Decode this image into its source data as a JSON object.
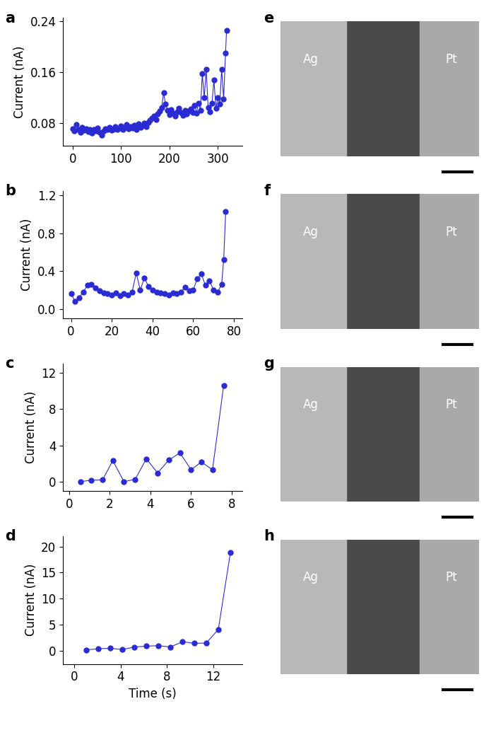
{
  "chart_data": [
    {
      "type": "line",
      "title": "a",
      "y_label": "Current (nA)",
      "color": "#2b2bd4",
      "marker": "o",
      "line_style": "solid",
      "x": [
        0,
        4,
        8,
        12,
        16,
        20,
        24,
        28,
        32,
        36,
        40,
        44,
        48,
        52,
        56,
        60,
        64,
        68,
        72,
        76,
        80,
        84,
        88,
        92,
        96,
        100,
        104,
        108,
        112,
        116,
        120,
        124,
        128,
        132,
        136,
        140,
        144,
        148,
        152,
        156,
        160,
        164,
        168,
        172,
        176,
        180,
        184,
        188,
        192,
        196,
        200,
        204,
        208,
        212,
        216,
        220,
        224,
        228,
        232,
        236,
        240,
        244,
        248,
        252,
        256,
        260,
        264,
        268,
        272,
        276,
        280,
        284,
        288,
        292,
        296,
        300,
        304,
        308,
        312,
        316,
        318
      ],
      "values": [
        0.072,
        0.068,
        0.078,
        0.07,
        0.066,
        0.074,
        0.069,
        0.072,
        0.067,
        0.071,
        0.065,
        0.07,
        0.068,
        0.073,
        0.066,
        0.062,
        0.068,
        0.072,
        0.07,
        0.074,
        0.069,
        0.071,
        0.075,
        0.07,
        0.073,
        0.076,
        0.071,
        0.074,
        0.078,
        0.072,
        0.075,
        0.073,
        0.077,
        0.071,
        0.079,
        0.074,
        0.076,
        0.08,
        0.075,
        0.082,
        0.085,
        0.088,
        0.092,
        0.086,
        0.095,
        0.099,
        0.105,
        0.128,
        0.11,
        0.1,
        0.094,
        0.102,
        0.096,
        0.092,
        0.098,
        0.104,
        0.097,
        0.093,
        0.1,
        0.095,
        0.099,
        0.103,
        0.097,
        0.108,
        0.096,
        0.112,
        0.1,
        0.158,
        0.12,
        0.165,
        0.105,
        0.098,
        0.112,
        0.148,
        0.104,
        0.12,
        0.11,
        0.165,
        0.118,
        0.19,
        0.225
      ],
      "xlim": [
        -20,
        350
      ],
      "xticks": [
        0,
        100,
        200,
        300
      ],
      "ylim": [
        0.045,
        0.245
      ],
      "yticks": [
        0.08,
        0.16,
        0.24
      ]
    },
    {
      "type": "line",
      "title": "b",
      "y_label": "Current (nA)",
      "color": "#2b2bd4",
      "marker": "o",
      "line_style": "solid",
      "x": [
        0,
        2,
        4,
        6,
        8,
        10,
        12,
        14,
        16,
        18,
        20,
        22,
        24,
        26,
        28,
        30,
        32,
        34,
        36,
        38,
        40,
        42,
        44,
        46,
        48,
        50,
        52,
        54,
        56,
        58,
        60,
        62,
        64,
        66,
        68,
        70,
        72,
        74,
        75,
        76
      ],
      "values": [
        0.16,
        0.08,
        0.12,
        0.18,
        0.25,
        0.26,
        0.22,
        0.19,
        0.17,
        0.16,
        0.15,
        0.17,
        0.14,
        0.16,
        0.15,
        0.18,
        0.38,
        0.2,
        0.33,
        0.24,
        0.2,
        0.18,
        0.17,
        0.16,
        0.15,
        0.17,
        0.16,
        0.18,
        0.23,
        0.19,
        0.2,
        0.32,
        0.37,
        0.25,
        0.3,
        0.2,
        0.18,
        0.26,
        0.52,
        1.03
      ],
      "xlim": [
        -4,
        84
      ],
      "xticks": [
        0,
        20,
        40,
        60,
        80
      ],
      "ylim": [
        -0.1,
        1.25
      ],
      "yticks": [
        0.0,
        0.4,
        0.8,
        1.2
      ]
    },
    {
      "type": "line",
      "title": "c",
      "y_label": "Current (nA)",
      "color": "#2b2bd4",
      "marker": "o",
      "line_style": "solid",
      "x": [
        0.55,
        1.1,
        1.65,
        2.15,
        2.7,
        3.25,
        3.8,
        4.35,
        4.9,
        5.45,
        6.0,
        6.5,
        7.05,
        7.6
      ],
      "values": [
        0.05,
        0.2,
        0.25,
        2.35,
        0.05,
        0.3,
        2.55,
        1.0,
        2.4,
        3.2,
        1.35,
        2.2,
        1.35,
        10.6
      ],
      "xlim": [
        -0.3,
        8.5
      ],
      "xticks": [
        0,
        2,
        4,
        6,
        8
      ],
      "ylim": [
        -1,
        13
      ],
      "yticks": [
        0,
        4,
        8,
        12
      ]
    },
    {
      "type": "line",
      "title": "d",
      "x_label": "Time (s)",
      "y_label": "Current (nA)",
      "color": "#2b2bd4",
      "marker": "o",
      "line_style": "solid",
      "x": [
        1,
        2.05,
        3.1,
        4.15,
        5.2,
        6.2,
        7.25,
        8.3,
        9.35,
        10.4,
        11.4,
        12.45,
        13.5
      ],
      "values": [
        0.2,
        0.4,
        0.5,
        0.25,
        0.75,
        0.9,
        1.0,
        0.75,
        1.75,
        1.45,
        1.5,
        4.1,
        18.9
      ],
      "xlim": [
        -1,
        14.5
      ],
      "xticks": [
        0,
        4,
        8,
        12
      ],
      "ylim": [
        -2.5,
        22
      ],
      "yticks": [
        0,
        5,
        10,
        15,
        20
      ]
    }
  ],
  "images": [
    {
      "title": "e",
      "left": "Ag",
      "right": "Pt"
    },
    {
      "title": "f",
      "left": "Ag",
      "right": "Pt"
    },
    {
      "title": "g",
      "left": "Ag",
      "right": "Pt"
    },
    {
      "title": "h",
      "left": "Ag",
      "right": "Pt"
    }
  ]
}
